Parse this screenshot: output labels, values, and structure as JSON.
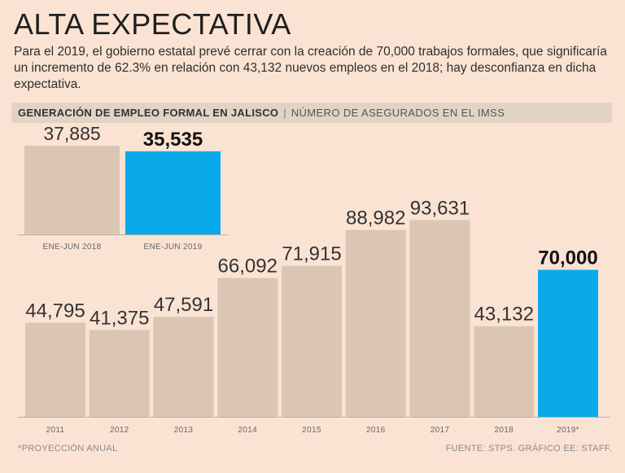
{
  "title": "ALTA EXPECTATIVA",
  "subtitle": "Para el 2019, el gobierno estatal prevé cerrar con la creación de 70,000 trabajos formales, que significaría un incremento de 62.3% en relación con 43,132 nuevos empleos en el 2018; hay desconfianza en dicha expectativa.",
  "band": {
    "strong": "GENERACIÓN DE EMPLEO FORMAL EN JALISCO",
    "separator": "|",
    "light": "NÚMERO DE ASEGURADOS EN EL IMSS"
  },
  "colors": {
    "bar": "#dac6b3",
    "highlight": "#0aaaea",
    "background": "#fbe3d3",
    "axis": "#bdb1a4"
  },
  "chart_data": [
    {
      "type": "bar",
      "title": "GENERACIÓN DE EMPLEO FORMAL EN JALISCO",
      "categories": [
        "ENE-JUN 2018",
        "ENE-JUN 2019"
      ],
      "values": [
        37885,
        35535
      ],
      "value_labels": [
        "37,885",
        "35,535"
      ],
      "highlight_index": 1,
      "xlabel": "",
      "ylabel": "",
      "ylim": [
        0,
        40000
      ]
    },
    {
      "type": "bar",
      "title": "NÚMERO DE ASEGURADOS EN EL IMSS",
      "categories": [
        "2011",
        "2012",
        "2013",
        "2014",
        "2015",
        "2016",
        "2017",
        "2018",
        "2019*"
      ],
      "values": [
        44795,
        41375,
        47591,
        66092,
        71915,
        88982,
        93631,
        43132,
        70000
      ],
      "value_labels": [
        "44,795",
        "41,375",
        "47,591",
        "66,092",
        "71,915",
        "88,982",
        "93,631",
        "43,132",
        "70,000"
      ],
      "highlight_index": 8,
      "xlabel": "",
      "ylabel": "",
      "ylim": [
        0,
        100000
      ]
    }
  ],
  "footnote": "*PROYECCIÓN ANUAL",
  "source": "FUENTE: STPS. GRÁFICO EE: STAFF."
}
